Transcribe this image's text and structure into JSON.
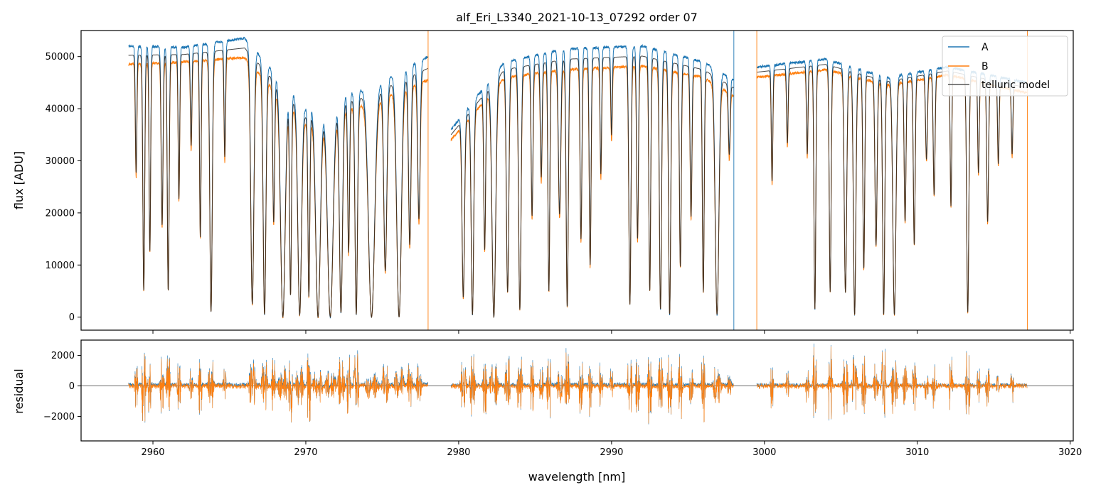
{
  "chart_data": {
    "type": "line",
    "title": "alf_Eri_L3340_2021-10-13_07292  order 07",
    "xlabel": "wavelength [nm]",
    "xlim": [
      2955.3,
      3020.2
    ],
    "x_ticks": [
      "2960",
      "2970",
      "2980",
      "2990",
      "3000",
      "3010",
      "3020"
    ],
    "colors": {
      "A": "#1f77b4",
      "B": "#ff7f0e",
      "telluric": "#222222"
    },
    "segments": [
      [
        2958.4,
        2978.0
      ],
      [
        2979.5,
        2998.0
      ],
      [
        2999.5,
        3017.2
      ]
    ],
    "top_panel": {
      "ylabel": "flux [ADU]",
      "ylim": [
        -2500,
        55000
      ],
      "y_ticks": [
        "0",
        "10000",
        "20000",
        "30000",
        "40000",
        "50000"
      ],
      "legend": {
        "position": "top-right",
        "entries": [
          "A",
          "B",
          "telluric model"
        ]
      },
      "series": [
        {
          "name": "A",
          "continuum": [
            [
              2958.4,
              52000
            ],
            [
              2962,
              51800
            ],
            [
              2966,
              53500
            ],
            [
              2970,
              40000
            ],
            [
              2974,
              44000
            ],
            [
              2978,
              50000
            ],
            [
              2979.5,
              36000
            ],
            [
              2983,
              49000
            ],
            [
              2987,
              51500
            ],
            [
              2992,
              52000
            ],
            [
              2996,
              49000
            ],
            [
              2998,
              45500
            ],
            [
              2999.5,
              48000
            ],
            [
              3004,
              49500
            ],
            [
              3008,
              46000
            ],
            [
              3012,
              48000
            ],
            [
              3017.2,
              45000
            ]
          ]
        },
        {
          "name": "B",
          "continuum": [
            [
              2958.4,
              48500
            ],
            [
              2962,
              49000
            ],
            [
              2966,
              49800
            ],
            [
              2970,
              37000
            ],
            [
              2974,
              41000
            ],
            [
              2978,
              45500
            ],
            [
              2979.5,
              34000
            ],
            [
              2983,
              46000
            ],
            [
              2987,
              47500
            ],
            [
              2992,
              48200
            ],
            [
              2996,
              46000
            ],
            [
              2998,
              42500
            ],
            [
              2999.5,
              46000
            ],
            [
              3004,
              47500
            ],
            [
              3008,
              44500
            ],
            [
              3012,
              46500
            ],
            [
              3017.2,
              43000
            ]
          ]
        },
        {
          "name": "telluric model"
        }
      ],
      "absorption_lines": [
        [
          2958.9,
          0.45,
          0.05
        ],
        [
          2959.4,
          0.9,
          0.06
        ],
        [
          2959.8,
          0.75,
          0.05
        ],
        [
          2960.6,
          0.65,
          0.06
        ],
        [
          2961.0,
          0.9,
          0.06
        ],
        [
          2961.7,
          0.55,
          0.05
        ],
        [
          2962.5,
          0.35,
          0.05
        ],
        [
          2963.1,
          0.7,
          0.05
        ],
        [
          2963.8,
          0.98,
          0.08
        ],
        [
          2964.7,
          0.4,
          0.05
        ],
        [
          2966.5,
          0.95,
          0.1
        ],
        [
          2967.3,
          0.99,
          0.09
        ],
        [
          2967.9,
          0.6,
          0.06
        ],
        [
          2968.5,
          1.0,
          0.15
        ],
        [
          2969.0,
          0.9,
          0.06
        ],
        [
          2969.6,
          0.99,
          0.12
        ],
        [
          2970.2,
          0.9,
          0.06
        ],
        [
          2970.8,
          1.0,
          0.15
        ],
        [
          2971.6,
          1.0,
          0.18
        ],
        [
          2972.3,
          0.98,
          0.1
        ],
        [
          2972.8,
          0.7,
          0.06
        ],
        [
          2973.3,
          0.99,
          0.08
        ],
        [
          2974.3,
          1.0,
          0.2
        ],
        [
          2975.2,
          0.8,
          0.1
        ],
        [
          2976.1,
          1.0,
          0.15
        ],
        [
          2976.8,
          0.7,
          0.08
        ],
        [
          2977.4,
          0.6,
          0.08
        ],
        [
          2980.3,
          0.9,
          0.08
        ],
        [
          2980.9,
          0.99,
          0.08
        ],
        [
          2981.7,
          0.7,
          0.06
        ],
        [
          2982.3,
          1.0,
          0.12
        ],
        [
          2983.2,
          0.9,
          0.08
        ],
        [
          2984.0,
          0.97,
          0.08
        ],
        [
          2984.8,
          0.6,
          0.06
        ],
        [
          2985.4,
          0.45,
          0.06
        ],
        [
          2985.9,
          0.9,
          0.06
        ],
        [
          2986.6,
          0.6,
          0.08
        ],
        [
          2987.1,
          0.96,
          0.07
        ],
        [
          2988.0,
          0.7,
          0.06
        ],
        [
          2988.6,
          0.8,
          0.06
        ],
        [
          2989.3,
          0.45,
          0.05
        ],
        [
          2990.0,
          0.3,
          0.05
        ],
        [
          2991.2,
          0.95,
          0.07
        ],
        [
          2991.7,
          0.7,
          0.06
        ],
        [
          2992.5,
          0.9,
          0.06
        ],
        [
          2993.2,
          0.97,
          0.07
        ],
        [
          2993.8,
          0.99,
          0.07
        ],
        [
          2994.5,
          0.8,
          0.06
        ],
        [
          2995.2,
          0.6,
          0.06
        ],
        [
          2996.0,
          0.9,
          0.06
        ],
        [
          2996.9,
          0.99,
          0.12
        ],
        [
          2997.7,
          0.3,
          0.06
        ],
        [
          3000.5,
          0.45,
          0.05
        ],
        [
          3001.5,
          0.3,
          0.05
        ],
        [
          3002.8,
          0.35,
          0.05
        ],
        [
          3003.3,
          0.97,
          0.06
        ],
        [
          3004.3,
          0.9,
          0.06
        ],
        [
          3005.3,
          0.9,
          0.08
        ],
        [
          3005.9,
          0.99,
          0.08
        ],
        [
          3006.5,
          0.8,
          0.06
        ],
        [
          3007.3,
          0.7,
          0.07
        ],
        [
          3007.8,
          0.99,
          0.07
        ],
        [
          3008.5,
          0.99,
          0.1
        ],
        [
          3009.2,
          0.6,
          0.06
        ],
        [
          3009.8,
          0.7,
          0.06
        ],
        [
          3010.6,
          0.35,
          0.06
        ],
        [
          3011.1,
          0.5,
          0.06
        ],
        [
          3012.2,
          0.55,
          0.05
        ],
        [
          3013.3,
          0.98,
          0.07
        ],
        [
          3014.0,
          0.4,
          0.05
        ],
        [
          3014.6,
          0.6,
          0.06
        ],
        [
          3015.3,
          0.35,
          0.05
        ],
        [
          3016.2,
          0.3,
          0.05
        ]
      ],
      "spikes": [
        {
          "series": "B",
          "x": 2978.0
        },
        {
          "series": "A",
          "x": 2998.0
        },
        {
          "series": "B",
          "x": 2999.5
        },
        {
          "series": "B",
          "x": 3017.2
        }
      ]
    },
    "bottom_panel": {
      "ylabel": "residual",
      "ylim": [
        -3600,
        3000
      ],
      "y_ticks": [
        "2000",
        "0",
        "−2000"
      ],
      "zero_line": true
    }
  }
}
